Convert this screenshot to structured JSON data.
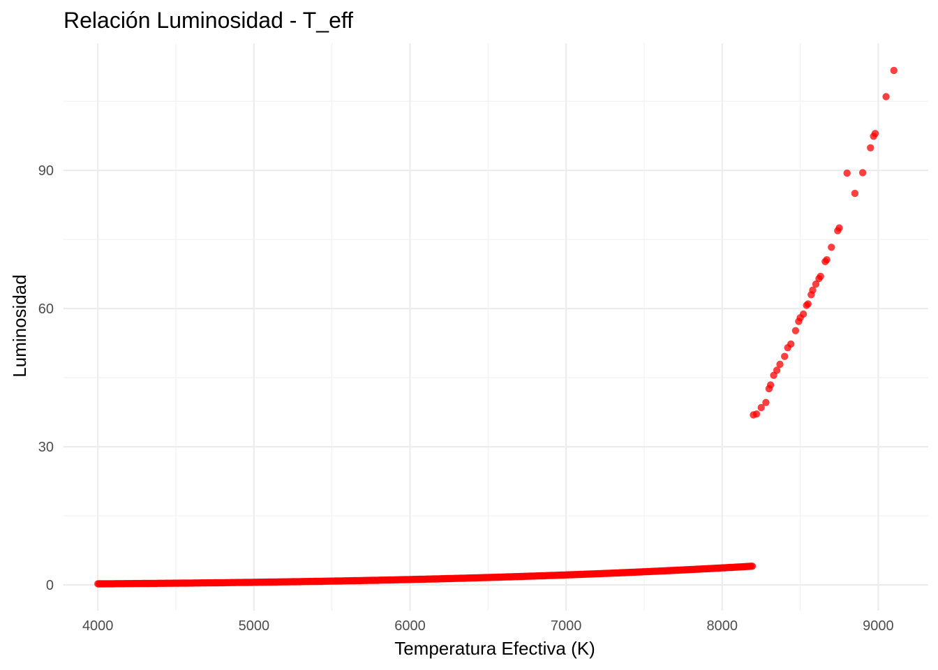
{
  "chart_data": {
    "type": "scatter",
    "title": "Relación Luminosidad - T_eff",
    "xlabel": "Temperatura Efectiva (K)",
    "ylabel": "Luminosidad",
    "xlim": [
      3780,
      9320
    ],
    "ylim": [
      -5.6,
      117.6
    ],
    "xticks": [
      4000,
      5000,
      6000,
      7000,
      8000,
      9000
    ],
    "yticks": [
      0,
      30,
      60,
      90
    ],
    "xtick_labels": [
      "4000",
      "5000",
      "6000",
      "7000",
      "8000",
      "9000"
    ],
    "ytick_labels": [
      "0",
      "30",
      "60",
      "90"
    ],
    "grid": true,
    "point_color": "#ff0000",
    "point_opacity": 0.75,
    "relation": "L = (T/5772)^4 (dense sample from 4000 to ~8200 K)",
    "points": [
      [
        8200,
        36.9
      ],
      [
        8220,
        37.1
      ],
      [
        8250,
        38.5
      ],
      [
        8280,
        39.6
      ],
      [
        8300,
        42.6
      ],
      [
        8310,
        43.4
      ],
      [
        8330,
        45.5
      ],
      [
        8350,
        46.6
      ],
      [
        8370,
        47.9
      ],
      [
        8400,
        49.6
      ],
      [
        8420,
        51.5
      ],
      [
        8440,
        52.3
      ],
      [
        8470,
        55.2
      ],
      [
        8490,
        57.2
      ],
      [
        8500,
        58.0
      ],
      [
        8520,
        58.8
      ],
      [
        8540,
        60.7
      ],
      [
        8550,
        61.0
      ],
      [
        8570,
        63.0
      ],
      [
        8580,
        64.0
      ],
      [
        8600,
        65.3
      ],
      [
        8620,
        66.5
      ],
      [
        8630,
        67.0
      ],
      [
        8660,
        70.2
      ],
      [
        8670,
        70.6
      ],
      [
        8700,
        73.3
      ],
      [
        8740,
        76.9
      ],
      [
        8750,
        77.5
      ],
      [
        8800,
        89.4
      ],
      [
        8850,
        85.0
      ],
      [
        8900,
        89.5
      ],
      [
        8950,
        94.9
      ],
      [
        8970,
        97.4
      ],
      [
        8980,
        98.0
      ],
      [
        9050,
        106.0
      ],
      [
        9100,
        111.7
      ]
    ]
  }
}
